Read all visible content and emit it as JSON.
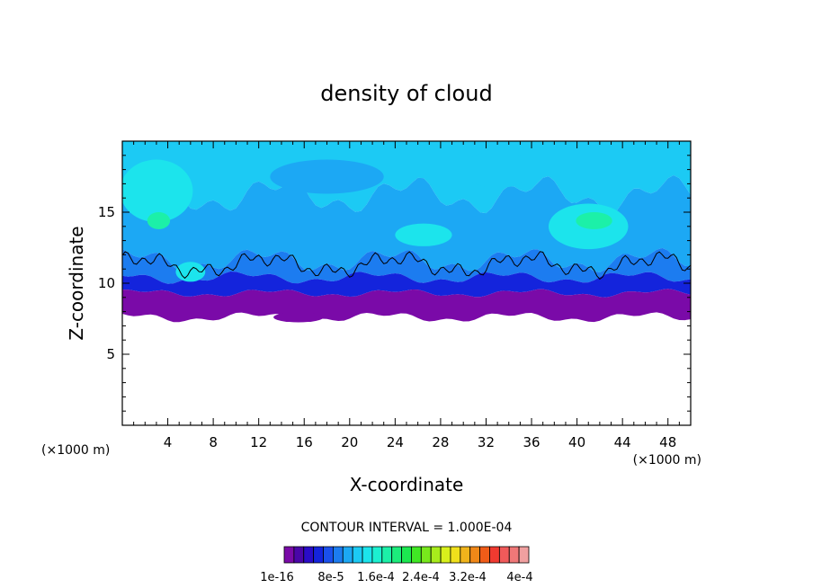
{
  "chart_data": {
    "type": "heatmap",
    "title": "density of cloud",
    "xlabel": "X-coordinate",
    "ylabel": "Z-coordinate",
    "x_unit": "(×1000 m)",
    "z_unit": "(×1000 m)",
    "xlim": [
      0,
      50
    ],
    "ylim": [
      0,
      20
    ],
    "x_ticks": [
      4,
      8,
      12,
      16,
      20,
      24,
      28,
      32,
      36,
      40,
      44,
      48
    ],
    "y_ticks": [
      5,
      10,
      15
    ],
    "contour_interval_text": "CONTOUR INTERVAL = 1.000E-04",
    "colorbar": {
      "labels": [
        "1e-16",
        "8e-5",
        "1.6e-4",
        "2.4e-4",
        "3.2e-4",
        "4e-4"
      ],
      "colors": [
        "#7a0aa8",
        "#4a06a8",
        "#2a0cc8",
        "#1424dc",
        "#1a50ec",
        "#1c7cf0",
        "#1ca8f4",
        "#1ccaf4",
        "#1ce4ec",
        "#1cf0d0",
        "#1cf0a8",
        "#1cec7c",
        "#1ce850",
        "#40e824",
        "#78e81c",
        "#a8ec1c",
        "#d8f01c",
        "#f0e01c",
        "#f0b41c",
        "#f08818",
        "#f05c18",
        "#f03a30",
        "#f05a5a",
        "#f07878",
        "#f0a0a0"
      ]
    },
    "field_colors": {
      "top_band": "#1ccaf4",
      "mid_band": "#1ca8f4",
      "lower_band": "#1c7cf0",
      "base_band": "#1424dc",
      "bottom_band": "#7a0aa8",
      "light_patch": "#1ce4ec",
      "green_patch": "#1cf0a8"
    }
  }
}
